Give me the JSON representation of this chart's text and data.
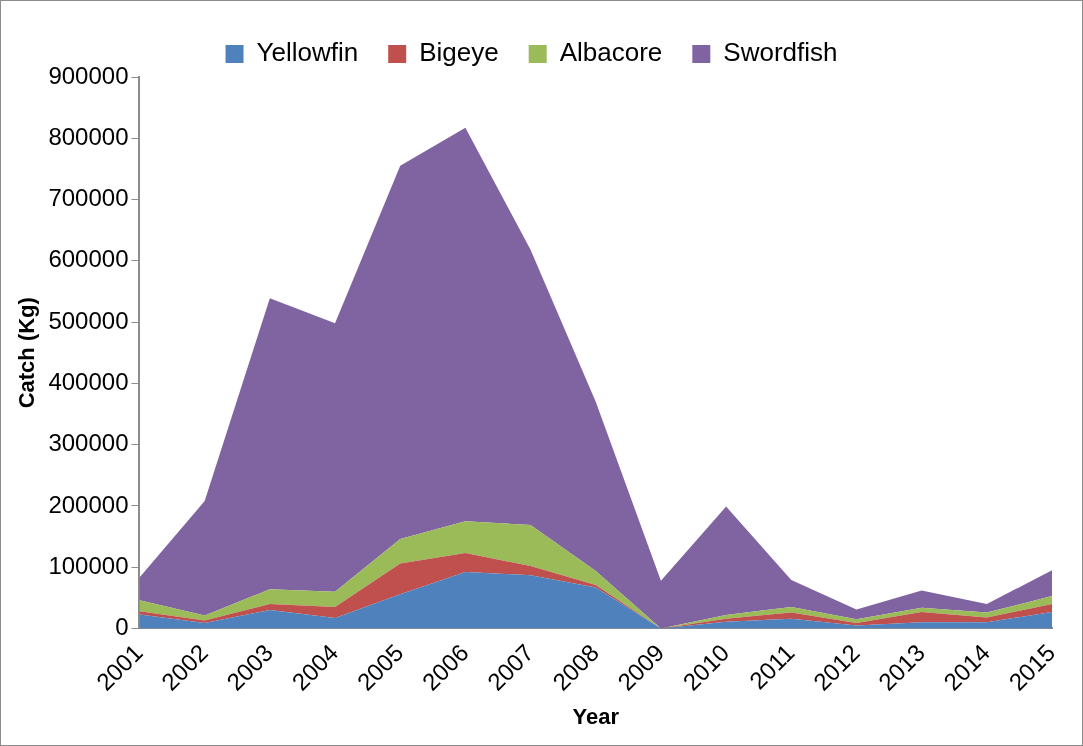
{
  "chart_data": {
    "type": "area",
    "stacked": true,
    "xlabel": "Year",
    "ylabel": "Catch (Kg)",
    "categories": [
      "2001",
      "2002",
      "2003",
      "2004",
      "2005",
      "2006",
      "2007",
      "2008",
      "2009",
      "2010",
      "2011",
      "2012",
      "2013",
      "2014",
      "2015"
    ],
    "series": [
      {
        "name": "Yellowfin",
        "color": "#4f81bd",
        "values": [
          23000,
          9000,
          30000,
          17000,
          56000,
          92000,
          87000,
          67000,
          0,
          11000,
          16000,
          5000,
          10000,
          10000,
          27000
        ]
      },
      {
        "name": "Bigeye",
        "color": "#c0504d",
        "values": [
          5000,
          4000,
          10000,
          18000,
          50000,
          31000,
          15000,
          4000,
          0,
          5000,
          10000,
          4000,
          17000,
          8000,
          13000
        ]
      },
      {
        "name": "Albacore",
        "color": "#9bbb59",
        "values": [
          18000,
          8000,
          24000,
          25000,
          40000,
          52000,
          67000,
          23000,
          0,
          6000,
          9000,
          6000,
          7000,
          8000,
          13000
        ]
      },
      {
        "name": "Swordfish",
        "color": "#8064a2",
        "values": [
          37000,
          187000,
          475000,
          438000,
          609000,
          642000,
          449000,
          276000,
          78000,
          177000,
          44000,
          16000,
          28000,
          14000,
          42000
        ]
      }
    ],
    "ylim": [
      0,
      900000
    ],
    "yticks": [
      0,
      100000,
      200000,
      300000,
      400000,
      500000,
      600000,
      700000,
      800000,
      900000
    ],
    "grid": false,
    "legend": "top"
  }
}
